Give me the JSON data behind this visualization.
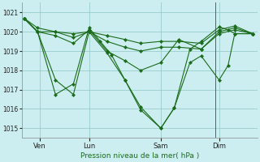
{
  "background_color": "#cceef0",
  "grid_color": "#99cccc",
  "line_color": "#1a6b1a",
  "marker_color": "#1a6b1a",
  "xlabel": "Pression niveau de la mer( hPa )",
  "ylim": [
    1014.5,
    1021.5
  ],
  "yticks": [
    1015,
    1016,
    1017,
    1018,
    1019,
    1020,
    1021
  ],
  "xlim": [
    0,
    10.5
  ],
  "xtick_labels": [
    "Ven",
    "Lun",
    "Sam",
    "Dim"
  ],
  "xtick_positions": [
    0.8,
    3.0,
    6.2,
    8.8
  ],
  "lines": [
    {
      "x": [
        0.1,
        0.7,
        1.5,
        2.3,
        3.0,
        3.8,
        4.6,
        5.3,
        6.2,
        7.0,
        8.0,
        8.8,
        9.5,
        10.3
      ],
      "y": [
        1020.7,
        1020.2,
        1020.0,
        1019.9,
        1020.0,
        1019.8,
        1019.6,
        1019.4,
        1019.5,
        1019.5,
        1019.4,
        1020.1,
        1020.3,
        1019.9
      ]
    },
    {
      "x": [
        0.1,
        0.7,
        1.5,
        2.3,
        3.0,
        3.8,
        4.6,
        5.3,
        6.2,
        7.0,
        8.0,
        8.8,
        9.5,
        10.3
      ],
      "y": [
        1020.7,
        1020.0,
        1020.0,
        1019.7,
        1020.0,
        1019.5,
        1019.2,
        1019.0,
        1019.2,
        1019.2,
        1019.1,
        1020.0,
        1020.2,
        1019.9
      ]
    },
    {
      "x": [
        0.1,
        0.7,
        1.5,
        2.3,
        3.0,
        3.8,
        4.6,
        5.3,
        6.2,
        7.0,
        8.0,
        8.8,
        9.5,
        10.3
      ],
      "y": [
        1020.7,
        1020.0,
        1019.8,
        1019.4,
        1020.1,
        1019.0,
        1018.5,
        1018.0,
        1018.4,
        1019.6,
        1019.1,
        1019.9,
        1020.1,
        1019.9
      ]
    },
    {
      "x": [
        0.1,
        0.7,
        1.5,
        2.3,
        3.0,
        3.8,
        4.6,
        5.3,
        6.2,
        6.8,
        7.5,
        8.0,
        8.8,
        9.2,
        9.5,
        10.3
      ],
      "y": [
        1020.7,
        1020.0,
        1017.5,
        1016.75,
        1020.0,
        1018.9,
        1017.5,
        1016.1,
        1015.0,
        1016.05,
        1018.4,
        1018.75,
        1017.5,
        1018.25,
        1019.9,
        1019.9
      ]
    },
    {
      "x": [
        0.1,
        0.7,
        1.5,
        2.3,
        3.0,
        3.5,
        4.0,
        4.6,
        5.3,
        6.2,
        6.8,
        7.5,
        8.0,
        8.8,
        9.2,
        9.5,
        10.3
      ],
      "y": [
        1020.7,
        1020.0,
        1016.75,
        1017.3,
        1020.2,
        1019.5,
        1018.8,
        1017.5,
        1015.95,
        1015.0,
        1016.05,
        1019.1,
        1019.5,
        1020.25,
        1020.1,
        1019.9,
        1019.9
      ]
    }
  ],
  "vline_x": 8.65,
  "vline_color": "#556644"
}
